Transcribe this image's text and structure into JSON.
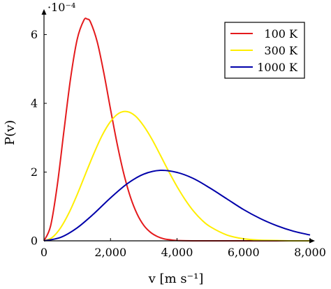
{
  "chart_data": {
    "type": "line",
    "xlabel": "v [m s⁻¹]",
    "ylabel": "P(v)",
    "y_scale_label": "·10⁻⁴",
    "xlim": [
      0,
      8000
    ],
    "ylim": [
      0,
      6.6
    ],
    "x_ticks": [
      0,
      2000,
      4000,
      6000,
      8000
    ],
    "x_tick_labels": [
      "0",
      "2,000",
      "4,000",
      "6,000",
      "8,000"
    ],
    "y_ticks": [
      0,
      2,
      4,
      6
    ],
    "y_tick_labels": [
      "0",
      "2",
      "4",
      "6"
    ],
    "grid": false,
    "legend_position": "top-right",
    "series": [
      {
        "name": "100 K",
        "color": "#e41a1c",
        "x": [
          0,
          200,
          400,
          600,
          800,
          1000,
          1200,
          1300,
          1400,
          1600,
          1800,
          2000,
          2200,
          2400,
          2600,
          2800,
          3000,
          3200,
          3400,
          3600,
          3800,
          4000,
          4500,
          5000,
          6000,
          7000,
          8000
        ],
        "values": [
          0,
          0.44,
          1.62,
          3.2,
          4.73,
          5.87,
          6.42,
          6.45,
          6.36,
          5.79,
          4.88,
          3.83,
          2.82,
          1.95,
          1.27,
          0.78,
          0.45,
          0.25,
          0.13,
          0.06,
          0.03,
          0.01,
          0.0,
          0.0,
          0.0,
          0.0,
          0.0
        ]
      },
      {
        "name": "300 K",
        "color": "#ffee00",
        "x": [
          0,
          250,
          500,
          750,
          1000,
          1250,
          1500,
          1750,
          2000,
          2250,
          2500,
          2750,
          3000,
          3250,
          3500,
          3750,
          4000,
          4250,
          4500,
          4750,
          5000,
          5500,
          6000,
          6500,
          7000,
          7500,
          8000
        ],
        "values": [
          0,
          0.1,
          0.38,
          0.81,
          1.35,
          1.95,
          2.54,
          3.07,
          3.47,
          3.71,
          3.76,
          3.63,
          3.34,
          2.95,
          2.49,
          2.02,
          1.58,
          1.19,
          0.86,
          0.6,
          0.41,
          0.17,
          0.06,
          0.02,
          0.01,
          0.0,
          0.0
        ]
      },
      {
        "name": "1000 K",
        "color": "#0000aa",
        "x": [
          0,
          500,
          1000,
          1500,
          2000,
          2500,
          3000,
          3500,
          4000,
          4500,
          5000,
          5500,
          6000,
          6500,
          7000,
          7500,
          8000
        ],
        "values": [
          0,
          0.1,
          0.38,
          0.79,
          1.25,
          1.66,
          1.94,
          2.05,
          1.99,
          1.81,
          1.53,
          1.22,
          0.91,
          0.65,
          0.44,
          0.28,
          0.17
        ]
      }
    ]
  }
}
